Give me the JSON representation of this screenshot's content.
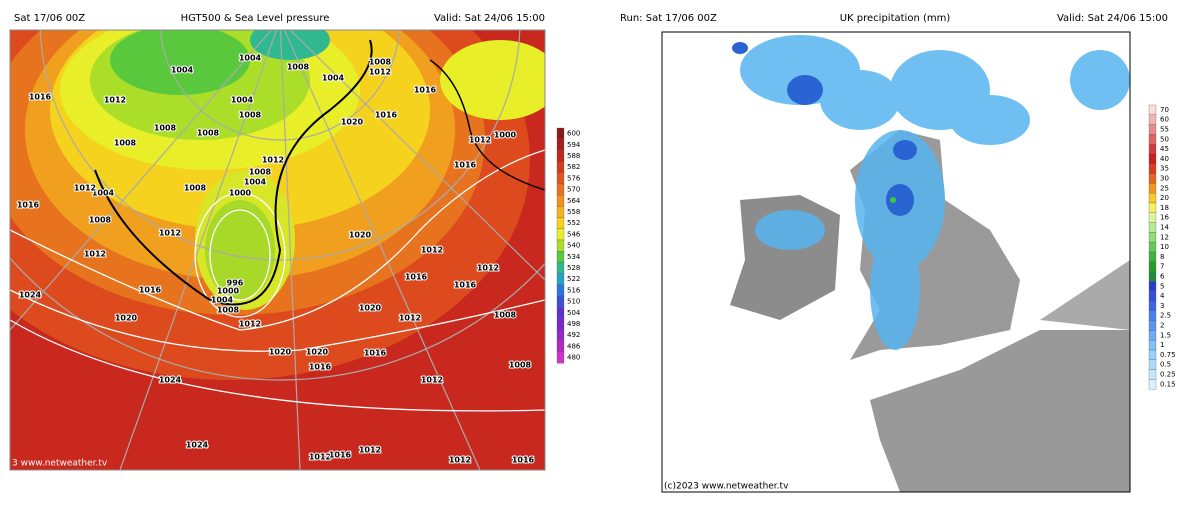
{
  "left_map": {
    "run": "Sat 17/06 00Z",
    "title": "HGT500 & Sea Level pressure",
    "valid": "Valid: Sat 24/06 15:00",
    "footer": "3 www.netweather.tv",
    "legend": [
      600,
      594,
      588,
      582,
      576,
      570,
      564,
      558,
      552,
      546,
      540,
      534,
      528,
      522,
      516,
      510,
      504,
      498,
      492,
      486,
      480
    ],
    "isobar_labels": [
      "1004",
      "1004",
      "1008",
      "1008",
      "1012",
      "1004",
      "1016",
      "1016",
      "1012",
      "1008",
      "1008",
      "1008",
      "1004",
      "1008",
      "1012",
      "1008",
      "1004",
      "1000",
      "1008",
      "1004",
      "1012",
      "1016",
      "1008",
      "1012",
      "1012",
      "996",
      "1000",
      "1004",
      "1008",
      "1012",
      "1016",
      "1020",
      "1024",
      "1024",
      "1024",
      "1020",
      "1020",
      "1016",
      "1016",
      "1020",
      "1016",
      "1016",
      "1012",
      "1000",
      "1020",
      "1012",
      "1016",
      "1016",
      "1012",
      "1020",
      "1012",
      "1012",
      "1008",
      "1008",
      "1012",
      "1016",
      "1012",
      "1012",
      "1016"
    ]
  },
  "right_map": {
    "run": "Run: Sat 17/06 00Z",
    "title": "UK precipitation (mm)",
    "valid": "Valid: Sat 24/06 15:00",
    "footer": "(c)2023 www.netweather.tv",
    "legend": [
      70,
      60,
      55,
      50,
      45,
      40,
      35,
      30,
      25,
      20,
      18,
      16,
      14,
      12,
      10,
      8,
      7,
      6,
      5,
      4,
      3,
      2.5,
      2,
      1.5,
      1,
      0.75,
      0.5,
      0.25,
      0.15
    ]
  }
}
